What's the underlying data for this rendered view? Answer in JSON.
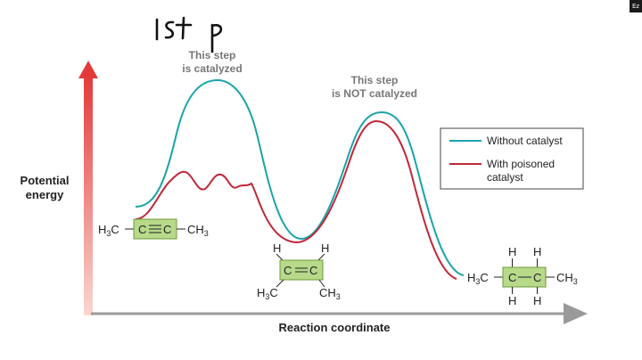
{
  "handwritten_note": "1st P",
  "annotations": {
    "catalyzed": [
      "This step",
      "is catalyzed"
    ],
    "not_catalyzed": [
      "This step",
      "is NOT catalyzed"
    ]
  },
  "axes": {
    "ylabel_lines": [
      "Potential",
      "energy"
    ],
    "xlabel": "Reaction coordinate"
  },
  "legend": {
    "items": [
      {
        "lines": [
          "Without catalyst"
        ],
        "color": "#1aa3a8"
      },
      {
        "lines": [
          "With poisoned",
          "catalyst"
        ],
        "color": "#c0283a"
      }
    ]
  },
  "molecules": {
    "alkyne": {
      "left": "H",
      "left_sub": "3",
      "left_c": "C",
      "c1": "C",
      "c2": "C",
      "right": "CH",
      "right_sub": "3"
    },
    "alkene": {
      "h": "H",
      "c": "C",
      "left": "H",
      "left_sub": "3",
      "left_c": "C",
      "right": "CH",
      "right_sub": "3"
    },
    "alkane": {
      "h": "H",
      "c": "C",
      "left": "H",
      "left_sub": "3",
      "left_c": "C",
      "right": "CH",
      "right_sub": "3"
    }
  },
  "colors": {
    "arrow_top": "#e23a3a",
    "arrow_bottom": "#f9c9c4",
    "axis": "#9a9a9a",
    "box_fill": "#b7d98a",
    "box_stroke": "#6c9c3a",
    "annotation_text": "#777777",
    "badge": "#1a1a1a"
  },
  "corner_badge": "Ez"
}
